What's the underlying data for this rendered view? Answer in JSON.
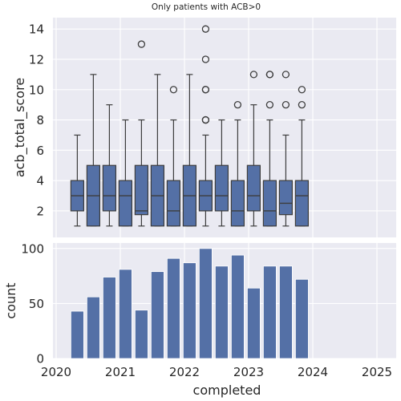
{
  "chart_data": [
    {
      "type": "box",
      "title": "Only patients with ACB>0",
      "ylabel": "acb_total_score",
      "ylim": [
        0.25,
        14.75
      ],
      "yticks": [
        2,
        4,
        6,
        8,
        10,
        12,
        14
      ],
      "grid": true,
      "series_color": "#5470a6",
      "boxes": [
        {
          "x": 2020.33,
          "q1": 2,
          "median": 3,
          "q3": 4,
          "whisker_low": 1,
          "whisker_high": 7,
          "outliers": []
        },
        {
          "x": 2020.58,
          "q1": 1,
          "median": 3,
          "q3": 5,
          "whisker_low": 1,
          "whisker_high": 11,
          "outliers": []
        },
        {
          "x": 2020.83,
          "q1": 2,
          "median": 3,
          "q3": 5,
          "whisker_low": 1,
          "whisker_high": 9,
          "outliers": []
        },
        {
          "x": 2021.08,
          "q1": 1,
          "median": 3,
          "q3": 4,
          "whisker_low": 1,
          "whisker_high": 8,
          "outliers": []
        },
        {
          "x": 2021.33,
          "q1": 1.75,
          "median": 2,
          "q3": 5,
          "whisker_low": 1,
          "whisker_high": 8,
          "outliers": [
            13
          ]
        },
        {
          "x": 2021.58,
          "q1": 1,
          "median": 3,
          "q3": 5,
          "whisker_low": 1,
          "whisker_high": 11,
          "outliers": []
        },
        {
          "x": 2021.83,
          "q1": 1,
          "median": 2,
          "q3": 4,
          "whisker_low": 1,
          "whisker_high": 8,
          "outliers": [
            10
          ]
        },
        {
          "x": 2022.08,
          "q1": 1,
          "median": 3,
          "q3": 5,
          "whisker_low": 1,
          "whisker_high": 11,
          "outliers": []
        },
        {
          "x": 2022.33,
          "q1": 2,
          "median": 3,
          "q3": 4,
          "whisker_low": 1,
          "whisker_high": 7,
          "outliers": [
            8,
            8,
            10,
            10,
            12,
            14
          ]
        },
        {
          "x": 2022.58,
          "q1": 2,
          "median": 3,
          "q3": 5,
          "whisker_low": 1,
          "whisker_high": 8,
          "outliers": []
        },
        {
          "x": 2022.83,
          "q1": 1,
          "median": 2,
          "q3": 4,
          "whisker_low": 1,
          "whisker_high": 8,
          "outliers": [
            9
          ]
        },
        {
          "x": 2023.08,
          "q1": 2,
          "median": 3,
          "q3": 5,
          "whisker_low": 1,
          "whisker_high": 9,
          "outliers": [
            11
          ]
        },
        {
          "x": 2023.33,
          "q1": 1,
          "median": 2,
          "q3": 4,
          "whisker_low": 1,
          "whisker_high": 8,
          "outliers": [
            9,
            11,
            11
          ]
        },
        {
          "x": 2023.58,
          "q1": 1.75,
          "median": 2.5,
          "q3": 4,
          "whisker_low": 1,
          "whisker_high": 7,
          "outliers": [
            9,
            11
          ]
        },
        {
          "x": 2023.83,
          "q1": 1,
          "median": 3,
          "q3": 4,
          "whisker_low": 1,
          "whisker_high": 8,
          "outliers": [
            9,
            10
          ]
        }
      ]
    },
    {
      "type": "bar",
      "xlabel": "completed",
      "ylabel": "count",
      "ylim": [
        0,
        105
      ],
      "yticks": [
        0,
        50,
        100
      ],
      "xlim": [
        2019.95,
        2025.3
      ],
      "xticks": [
        "2020",
        "2021",
        "2022",
        "2023",
        "2024",
        "2025"
      ],
      "grid": true,
      "series_color": "#5470a6",
      "bars": [
        {
          "x": 2020.33,
          "value": 43
        },
        {
          "x": 2020.58,
          "value": 56
        },
        {
          "x": 2020.83,
          "value": 74
        },
        {
          "x": 2021.08,
          "value": 81
        },
        {
          "x": 2021.33,
          "value": 44
        },
        {
          "x": 2021.58,
          "value": 79
        },
        {
          "x": 2021.83,
          "value": 91
        },
        {
          "x": 2022.08,
          "value": 87
        },
        {
          "x": 2022.33,
          "value": 100
        },
        {
          "x": 2022.58,
          "value": 84
        },
        {
          "x": 2022.83,
          "value": 94
        },
        {
          "x": 2023.08,
          "value": 64
        },
        {
          "x": 2023.33,
          "value": 84
        },
        {
          "x": 2023.58,
          "value": 84
        },
        {
          "x": 2023.83,
          "value": 72
        }
      ]
    }
  ]
}
